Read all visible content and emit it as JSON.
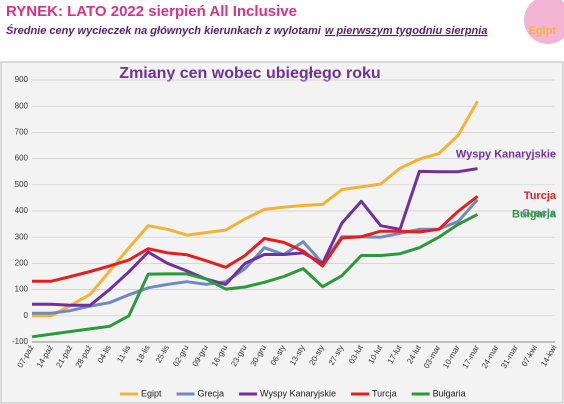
{
  "header": {
    "title": "RYNEK: LATO 2022 sierpień All Inclusive",
    "subtitle": "Średnie ceny wycieczek na głównych kierunkach z wylotami",
    "subtitle_emphasis": "w pierwszym tygodniu sierpnia"
  },
  "chart_data": {
    "type": "line",
    "title": "Zmiany cen wobec ubiegłego roku",
    "categories": [
      "07-paź",
      "14-paź",
      "21-paź",
      "28-paź",
      "04-lis",
      "11-lis",
      "18-lis",
      "25-lis",
      "02-gru",
      "09-gru",
      "16-gru",
      "23-gru",
      "30-gru",
      "06-sty",
      "13-sty",
      "20-sty",
      "27-sty",
      "03-lut",
      "10-lut",
      "17-lut",
      "24-lut",
      "03-mar",
      "10-mar",
      "17-mar",
      "24-mar",
      "31-mar",
      "07-kwi",
      "14-kwi"
    ],
    "series": [
      {
        "name": "Egipt",
        "color": "#f5b335",
        "values": [
          0,
          0,
          40,
          82,
          170,
          260,
          344,
          330,
          308,
          318,
          327,
          370,
          406,
          415,
          421,
          425,
          482,
          492,
          503,
          563,
          598,
          619,
          689,
          819,
          null,
          null,
          null,
          null
        ]
      },
      {
        "name": "Grecja",
        "color": "#6e8ac0",
        "values": [
          10,
          10,
          20,
          37,
          50,
          80,
          107,
          120,
          130,
          120,
          130,
          180,
          260,
          234,
          283,
          200,
          302,
          302,
          300,
          315,
          330,
          331,
          360,
          443,
          null,
          null,
          null,
          null
        ]
      },
      {
        "name": "Wyspy Kanaryjskie",
        "color": "#7030a0",
        "values": [
          44,
          44,
          40,
          40,
          100,
          168,
          243,
          200,
          171,
          140,
          120,
          200,
          234,
          234,
          240,
          200,
          354,
          437,
          344,
          330,
          551,
          550,
          550,
          562,
          null,
          null,
          null,
          null
        ]
      },
      {
        "name": "Turcja",
        "color": "#e32020",
        "values": [
          132,
          132,
          150,
          169,
          190,
          213,
          256,
          240,
          233,
          210,
          185,
          230,
          295,
          280,
          247,
          190,
          297,
          302,
          323,
          323,
          320,
          330,
          399,
          456,
          null,
          null,
          null,
          null
        ]
      },
      {
        "name": "Bułgaria",
        "color": "#2a9a3a",
        "values": [
          -80,
          -70,
          -60,
          -50,
          -40,
          0,
          159,
          160,
          160,
          140,
          102,
          110,
          128,
          150,
          180,
          111,
          153,
          230,
          230,
          237,
          260,
          300,
          349,
          387,
          null,
          null,
          null,
          null
        ]
      }
    ],
    "ylim": [
      -100,
      900
    ],
    "yticks": [
      -100,
      0,
      100,
      200,
      300,
      400,
      500,
      600,
      700,
      800,
      900
    ],
    "grid": true
  }
}
